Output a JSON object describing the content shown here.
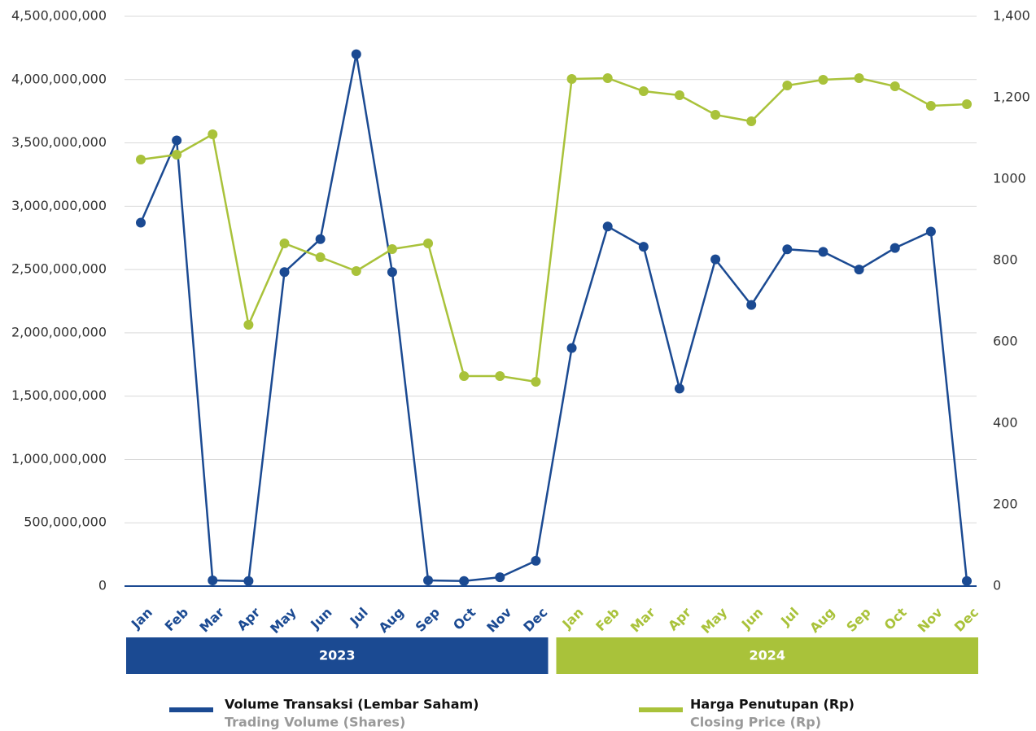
{
  "chart_data": {
    "type": "line",
    "categories": [
      "Jan",
      "Feb",
      "Mar",
      "Apr",
      "May",
      "Jun",
      "Jul",
      "Aug",
      "Sep",
      "Oct",
      "Nov",
      "Dec",
      "Jan",
      "Feb",
      "Mar",
      "Apr",
      "May",
      "Jun",
      "Jul",
      "Aug",
      "Sep",
      "Oct",
      "Nov",
      "Dec"
    ],
    "group_labels": [
      "2023",
      "2024"
    ],
    "group_colors": [
      "#1b4a92",
      "#a9c23a"
    ],
    "series": [
      {
        "name": "Volume Transaksi (Lembar Saham)",
        "name_en": "Trading Volume (Shares)",
        "color": "#1b4a92",
        "axis": "y",
        "values": [
          2870000000,
          3520000000,
          45000000,
          40000000,
          2480000000,
          2740000000,
          4200000000,
          2480000000,
          45000000,
          40000000,
          70000000,
          200000000,
          1880000000,
          2840000000,
          2680000000,
          1560000000,
          2580000000,
          2220000000,
          2660000000,
          2640000000,
          2500000000,
          2670000000,
          2800000000,
          40000000
        ]
      },
      {
        "name": "Harga Penutupan (Rp)",
        "name_en": "Closing Price (Rp)",
        "color": "#a9c23a",
        "axis": "y2",
        "values": [
          1048,
          1060,
          1110,
          642,
          842,
          808,
          774,
          828,
          842,
          516,
          516,
          502,
          1246,
          1248,
          1216,
          1206,
          1158,
          1142,
          1230,
          1244,
          1248,
          1228,
          1180,
          1184
        ]
      }
    ],
    "ylim": [
      0,
      4500000000
    ],
    "yticks": [
      0,
      {
        "value": 500000000,
        "label": "500,000,000"
      },
      {
        "value": 1000000000,
        "label": "1,000,000,000"
      },
      {
        "value": 1500000000,
        "label": "1,500,000,000"
      },
      {
        "value": 2000000000,
        "label": "2,000,000,000"
      },
      {
        "value": 2500000000,
        "label": "2,500,000,000"
      },
      {
        "value": 3000000000,
        "label": "3,000,000,000"
      },
      {
        "value": 3500000000,
        "label": "3,500,000,000"
      },
      {
        "value": 4000000000,
        "label": "4,000,000,000"
      },
      {
        "value": 4500000000,
        "label": "4,500,000,000"
      }
    ],
    "y2lim": [
      0,
      1400
    ],
    "y2ticks": [
      0,
      200,
      400,
      600,
      800,
      1000,
      {
        "value": 1200,
        "label": "1,200"
      },
      {
        "value": 1400,
        "label": "1,400"
      }
    ],
    "grid": true
  }
}
